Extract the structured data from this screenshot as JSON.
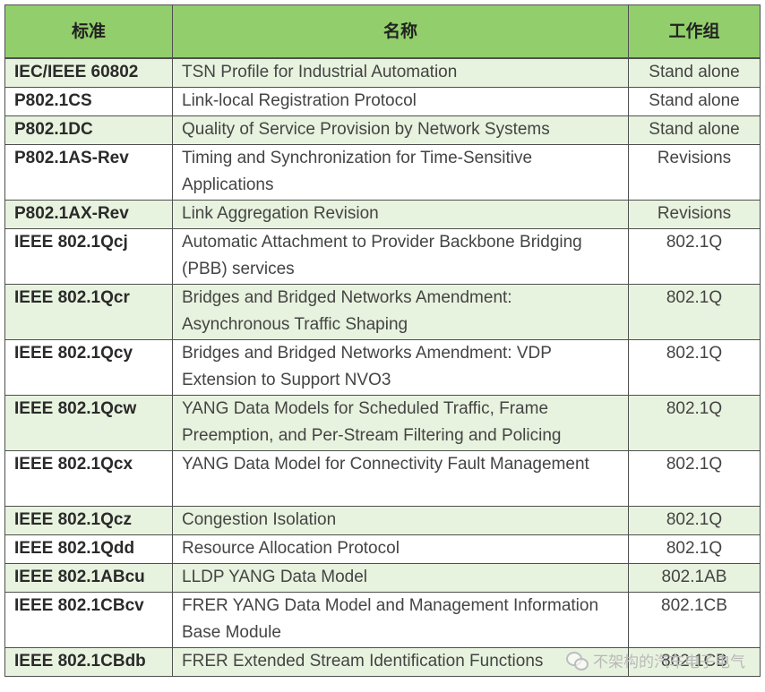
{
  "table": {
    "headers": {
      "standard": "标准",
      "name": "名称",
      "group": "工作组"
    },
    "rows": [
      {
        "standard": "IEC/IEEE 60802",
        "name": "TSN Profile for Industrial Automation",
        "group": "Stand alone"
      },
      {
        "standard": "P802.1CS",
        "name": "Link-local Registration Protocol",
        "group": "Stand alone"
      },
      {
        "standard": "P802.1DC",
        "name": "Quality of Service Provision by Network Systems",
        "group": "Stand alone"
      },
      {
        "standard": "P802.1AS-Rev",
        "name": "Timing and Synchronization for Time-Sensitive Applications",
        "group": "Revisions"
      },
      {
        "standard": "P802.1AX-Rev",
        "name": "Link Aggregation Revision",
        "group": "Revisions"
      },
      {
        "standard": "IEEE 802.1Qcj",
        "name": "Automatic Attachment to Provider Backbone Bridging (PBB) services",
        "group": "802.1Q"
      },
      {
        "standard": "IEEE 802.1Qcr",
        "name": "Bridges and Bridged Networks Amendment: Asynchronous Traffic Shaping",
        "group": "802.1Q"
      },
      {
        "standard": "IEEE 802.1Qcy",
        "name": "Bridges and Bridged Networks Amendment: VDP Extension to Support NVO3",
        "group": "802.1Q"
      },
      {
        "standard": "IEEE 802.1Qcw",
        "name": "YANG Data Models for Scheduled Traffic, Frame Preemption, and Per-Stream Filtering and Policing",
        "group": "802.1Q"
      },
      {
        "standard": "IEEE 802.1Qcx",
        "name": "YANG Data Model for Connectivity Fault Management",
        "group": "802.1Q"
      },
      {
        "standard": "IEEE 802.1Qcz",
        "name": "Congestion Isolation",
        "group": "802.1Q"
      },
      {
        "standard": "IEEE 802.1Qdd",
        "name": "Resource Allocation Protocol",
        "group": "802.1Q"
      },
      {
        "standard": "IEEE 802.1ABcu",
        "name": "LLDP YANG Data Model",
        "group": "802.1AB"
      },
      {
        "standard": "IEEE 802.1CBcv",
        "name": "FRER YANG Data Model and Management Information Base Module",
        "group": "802.1CB"
      },
      {
        "standard": "IEEE 802.1CBdb",
        "name": "FRER Extended Stream Identification Functions",
        "group": "802.1CB"
      }
    ]
  },
  "watermark": {
    "text": "不架构的汽车电子电气",
    "icon": "wechat-icon"
  },
  "colors": {
    "header_green": "#92cf6c",
    "row_green": "#e8f3df",
    "border": "#4f4f4f"
  }
}
